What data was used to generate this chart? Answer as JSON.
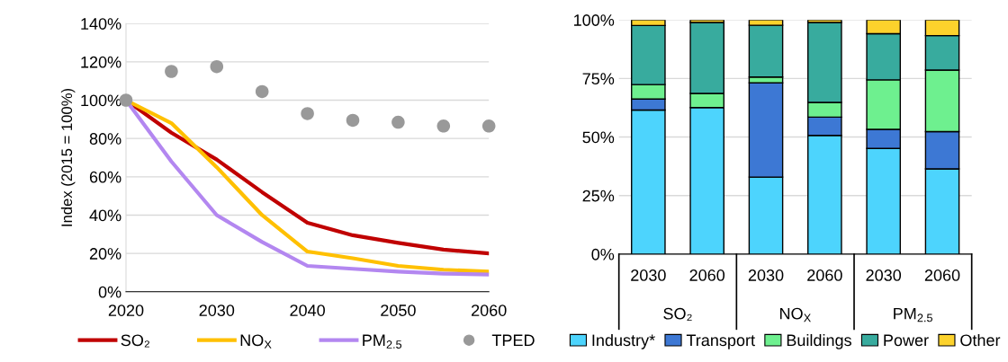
{
  "chart_data": [
    {
      "type": "line",
      "ylabel": "Index (2015 = 100%)",
      "x": [
        2020,
        2025,
        2030,
        2035,
        2040,
        2045,
        2050,
        2055,
        2060
      ],
      "series": [
        {
          "name": "SO₂",
          "color": "#c00000",
          "values": [
            100,
            83,
            69,
            52,
            36,
            29.5,
            25.5,
            22,
            20
          ]
        },
        {
          "name": "NO$_{X}$",
          "color": "#ffc000",
          "values": [
            100,
            88,
            65,
            40,
            21,
            17.5,
            13.5,
            11.5,
            10.5
          ]
        },
        {
          "name": "PM$_{2.5}$",
          "color": "#b387f0",
          "values": [
            100,
            68,
            40,
            26,
            13.5,
            12,
            10.5,
            9.5,
            9
          ]
        },
        {
          "name": "TPED",
          "color": "#999999",
          "type": "scatter",
          "values": [
            100,
            115,
            117.5,
            104.5,
            93,
            89.5,
            88.5,
            86.5,
            86.5
          ]
        }
      ],
      "xlim": [
        2020,
        2060
      ],
      "xticks": [
        2020,
        2030,
        2040,
        2050,
        2060
      ],
      "ylim": [
        0,
        140
      ],
      "yticks": [
        {
          "value": 0,
          "label": "0%"
        },
        {
          "value": 20,
          "label": "20%"
        },
        {
          "value": 40,
          "label": "40%"
        },
        {
          "value": 60,
          "label": "60%"
        },
        {
          "value": 80,
          "label": "80%"
        },
        {
          "value": 100,
          "label": "100%"
        },
        {
          "value": 120,
          "label": "120%"
        },
        {
          "value": 140,
          "label": "140%"
        }
      ],
      "grid": "y",
      "legend": "bottom"
    },
    {
      "type": "bar",
      "stacked": true,
      "categories": [
        "2030",
        "2060",
        "2030",
        "2060",
        "2030",
        "2060"
      ],
      "annotations": [
        "SO₂",
        "NO$_{X}$",
        "PM$_{2.5}$"
      ],
      "series": [
        {
          "name": "Industry*",
          "color": "#4dd4fd",
          "values": [
            61.5,
            62.6,
            32.9,
            50.7,
            45.1,
            36.4
          ]
        },
        {
          "name": "Transport",
          "color": "#3d78d4",
          "values": [
            4.7,
            null,
            40.2,
            7.8,
            8.2,
            15.9
          ]
        },
        {
          "name": "Buildings",
          "color": "#6ef08f",
          "values": [
            6.2,
            6,
            2.5,
            6.3,
            21.1,
            26.3
          ]
        },
        {
          "name": "Power",
          "color": "#38ab9e",
          "values": [
            25.2,
            30.3,
            22.1,
            34.1,
            19.7,
            14.7
          ]
        },
        {
          "name": "Other",
          "color": "#fcd22c",
          "values": [
            2.4,
            1.1,
            2.3,
            1.1,
            5.9,
            6.7
          ]
        }
      ],
      "ylim": [
        0,
        100
      ],
      "yticks": [
        {
          "value": 0,
          "label": "0%"
        },
        {
          "value": 25,
          "label": "25%"
        },
        {
          "value": 50,
          "label": "50%"
        },
        {
          "value": 75,
          "label": "75%"
        },
        {
          "value": 100,
          "label": "100%"
        }
      ],
      "grid": "y",
      "legend": "bottom"
    }
  ]
}
